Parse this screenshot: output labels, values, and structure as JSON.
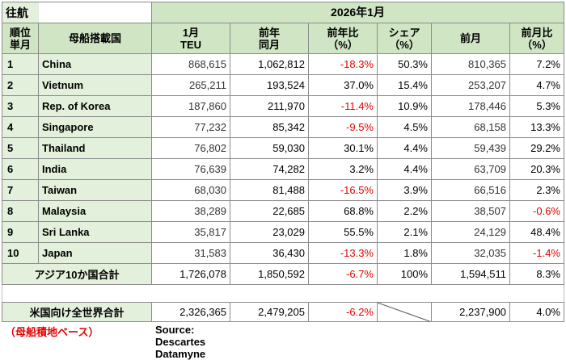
{
  "header": {
    "direction": "往航",
    "period": "2026年1月",
    "col_rank": [
      "順位",
      "単月"
    ],
    "col_country": "母船搭載国",
    "col_teu": [
      "1月",
      "TEU"
    ],
    "col_prev_year": [
      "前年",
      "同月"
    ],
    "col_yoy": [
      "前年比",
      "（%）"
    ],
    "col_share": [
      "シェア",
      "（%）"
    ],
    "col_prev_month": "前月",
    "col_mom": [
      "前月比",
      "（%）"
    ]
  },
  "rows": [
    {
      "rank": "1",
      "country": "China",
      "teu": "868,615",
      "prev_year": "1,062,812",
      "yoy": "-18.3%",
      "share": "50.3%",
      "prev_month": "810,365",
      "mom": "7.2%"
    },
    {
      "rank": "2",
      "country": "Vietnum",
      "teu": "265,211",
      "prev_year": "193,524",
      "yoy": "37.0%",
      "share": "15.4%",
      "prev_month": "253,207",
      "mom": "4.7%"
    },
    {
      "rank": "3",
      "country": "Rep. of Korea",
      "teu": "187,860",
      "prev_year": "211,970",
      "yoy": "-11.4%",
      "share": "10.9%",
      "prev_month": "178,446",
      "mom": "5.3%"
    },
    {
      "rank": "4",
      "country": "Singapore",
      "teu": "77,232",
      "prev_year": "85,342",
      "yoy": "-9.5%",
      "share": "4.5%",
      "prev_month": "68,158",
      "mom": "13.3%"
    },
    {
      "rank": "5",
      "country": "Thailand",
      "teu": "76,802",
      "prev_year": "59,030",
      "yoy": "30.1%",
      "share": "4.4%",
      "prev_month": "59,439",
      "mom": "29.2%"
    },
    {
      "rank": "6",
      "country": "India",
      "teu": "76,639",
      "prev_year": "74,282",
      "yoy": "3.2%",
      "share": "4.4%",
      "prev_month": "63,709",
      "mom": "20.3%"
    },
    {
      "rank": "7",
      "country": "Taiwan",
      "teu": "68,030",
      "prev_year": "81,488",
      "yoy": "-16.5%",
      "share": "3.9%",
      "prev_month": "66,516",
      "mom": "2.3%"
    },
    {
      "rank": "8",
      "country": "Malaysia",
      "teu": "38,289",
      "prev_year": "22,685",
      "yoy": "68.8%",
      "share": "2.2%",
      "prev_month": "38,507",
      "mom": "-0.6%"
    },
    {
      "rank": "9",
      "country": "Sri Lanka",
      "teu": "35,817",
      "prev_year": "23,029",
      "yoy": "55.5%",
      "share": "2.1%",
      "prev_month": "24,129",
      "mom": "48.4%"
    },
    {
      "rank": "10",
      "country": "Japan",
      "teu": "31,583",
      "prev_year": "36,430",
      "yoy": "-13.3%",
      "share": "1.8%",
      "prev_month": "32,035",
      "mom": "-1.4%"
    }
  ],
  "asia_total": {
    "label": "アジア10か国合計",
    "teu": "1,726,078",
    "prev_year": "1,850,592",
    "yoy": "-6.7%",
    "share": "100%",
    "prev_month": "1,594,511",
    "mom": "8.3%"
  },
  "world_total": {
    "label": "米国向け全世界合計",
    "teu": "2,326,365",
    "prev_year": "2,479,205",
    "yoy": "-6.2%",
    "prev_month": "2,237,900",
    "mom": "4.0%"
  },
  "footer": {
    "note": "（母船積地ベース）",
    "source": "Source:  Descartes Datamyne"
  },
  "colors": {
    "header_green": "#cfe5c4",
    "label_green": "#e3f0db",
    "negative_red": "#e60000"
  }
}
